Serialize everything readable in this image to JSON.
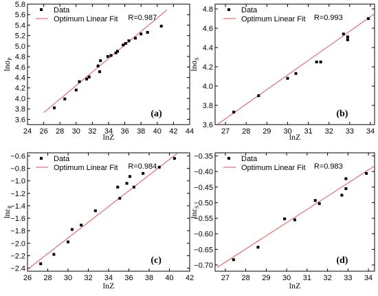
{
  "chart_data": [
    {
      "type": "scatter",
      "panel_label": "(a)",
      "xlabel": "lnZ",
      "ylabel_main": "lnσ",
      "ylabel_sub": "P",
      "xlim": [
        24,
        44
      ],
      "ylim": [
        3.5,
        5.8
      ],
      "xticks": [
        24,
        26,
        28,
        30,
        32,
        34,
        36,
        38,
        40,
        42,
        44
      ],
      "yticks": [
        3.6,
        3.8,
        4.0,
        4.2,
        4.4,
        4.6,
        4.8,
        5.0,
        5.2,
        5.4,
        5.6,
        5.8
      ],
      "ytick_decimals": 1,
      "r_text": "R=0.987",
      "legend": {
        "data": "Data",
        "fit": "Optimum Linear Fit",
        "placement": "top-left"
      },
      "fit": {
        "x": [
          26,
          41.2
        ],
        "y": [
          3.73,
          5.69
        ]
      },
      "points": [
        {
          "x": 27.3,
          "y": 3.82
        },
        {
          "x": 28.6,
          "y": 3.99
        },
        {
          "x": 30.0,
          "y": 4.16
        },
        {
          "x": 30.4,
          "y": 4.32
        },
        {
          "x": 31.3,
          "y": 4.37
        },
        {
          "x": 31.6,
          "y": 4.41
        },
        {
          "x": 32.7,
          "y": 4.62
        },
        {
          "x": 32.9,
          "y": 4.51
        },
        {
          "x": 33.0,
          "y": 4.72
        },
        {
          "x": 33.9,
          "y": 4.8
        },
        {
          "x": 34.3,
          "y": 4.82
        },
        {
          "x": 34.9,
          "y": 4.87
        },
        {
          "x": 35.1,
          "y": 4.9
        },
        {
          "x": 35.8,
          "y": 5.02
        },
        {
          "x": 36.1,
          "y": 5.05
        },
        {
          "x": 36.5,
          "y": 5.1
        },
        {
          "x": 37.3,
          "y": 5.15
        },
        {
          "x": 38.0,
          "y": 5.23
        },
        {
          "x": 38.8,
          "y": 5.26
        },
        {
          "x": 40.5,
          "y": 5.38
        }
      ]
    },
    {
      "type": "scatter",
      "panel_label": "(b)",
      "xlabel": "lnZ",
      "ylabel_main": "lnσ",
      "ylabel_sub": "S",
      "xlim": [
        26.5,
        34.2
      ],
      "ylim": [
        3.6,
        4.85
      ],
      "xticks": [
        27,
        28,
        29,
        30,
        31,
        32,
        33,
        34
      ],
      "yticks": [
        3.6,
        3.8,
        4.0,
        4.2,
        4.4,
        4.6,
        4.8
      ],
      "ytick_decimals": 1,
      "r_text": "R=0.993",
      "legend": {
        "data": "Data",
        "fit": "Optimum Linear Fit",
        "placement": "top-left"
      },
      "fit": {
        "x": [
          26.6,
          34.2
        ],
        "y": [
          3.6,
          4.75
        ]
      },
      "points": [
        {
          "x": 27.4,
          "y": 3.73
        },
        {
          "x": 28.6,
          "y": 3.9
        },
        {
          "x": 30.0,
          "y": 4.08
        },
        {
          "x": 30.4,
          "y": 4.13
        },
        {
          "x": 31.4,
          "y": 4.25
        },
        {
          "x": 31.6,
          "y": 4.25
        },
        {
          "x": 32.7,
          "y": 4.54
        },
        {
          "x": 32.9,
          "y": 4.48
        },
        {
          "x": 32.9,
          "y": 4.51
        },
        {
          "x": 33.9,
          "y": 4.7
        }
      ]
    },
    {
      "type": "scatter",
      "panel_label": "(c)",
      "xlabel": "lnZ",
      "ylabel_main": "lnε",
      "ylabel_sub": "P",
      "xlim": [
        26,
        42
      ],
      "ylim": [
        -2.45,
        -0.55
      ],
      "xticks": [
        26,
        28,
        30,
        32,
        34,
        36,
        38,
        40,
        42
      ],
      "yticks": [
        -2.4,
        -2.2,
        -2.0,
        -1.8,
        -1.6,
        -1.4,
        -1.2,
        -1.0,
        -0.8,
        -0.6
      ],
      "ytick_decimals": 1,
      "r_text": "R=0.984",
      "legend": {
        "data": "Data",
        "fit": "Optimum Linear Fit",
        "placement": "top-left"
      },
      "fit": {
        "x": [
          26,
          41
        ],
        "y": [
          -2.42,
          -0.53
        ]
      },
      "points": [
        {
          "x": 27.3,
          "y": -2.33
        },
        {
          "x": 28.6,
          "y": -2.18
        },
        {
          "x": 30.0,
          "y": -1.98
        },
        {
          "x": 30.4,
          "y": -1.78
        },
        {
          "x": 31.3,
          "y": -1.71
        },
        {
          "x": 32.7,
          "y": -1.48
        },
        {
          "x": 34.9,
          "y": -1.1
        },
        {
          "x": 35.1,
          "y": -1.28
        },
        {
          "x": 35.8,
          "y": -1.04
        },
        {
          "x": 36.1,
          "y": -0.93
        },
        {
          "x": 36.5,
          "y": -1.1
        },
        {
          "x": 37.4,
          "y": -0.88
        },
        {
          "x": 39.0,
          "y": -0.78
        },
        {
          "x": 40.5,
          "y": -0.64
        }
      ]
    },
    {
      "type": "scatter",
      "panel_label": "(d)",
      "xlabel": "lnZ",
      "ylabel_main": "lnε",
      "ylabel_sub": "S",
      "xlim": [
        26.5,
        34.3
      ],
      "ylim": [
        -0.72,
        -0.34
      ],
      "xticks": [
        27,
        28,
        29,
        30,
        31,
        32,
        33,
        34
      ],
      "yticks": [
        -0.7,
        -0.65,
        -0.6,
        -0.55,
        -0.5,
        -0.45,
        -0.4,
        -0.35
      ],
      "ytick_decimals": 2,
      "r_text": "R=0.983",
      "legend": {
        "data": "Data",
        "fit": "Optimum Linear Fit",
        "placement": "top-left"
      },
      "fit": {
        "x": [
          26.6,
          34.3
        ],
        "y": [
          -0.708,
          -0.382
        ]
      },
      "points": [
        {
          "x": 27.4,
          "y": -0.683
        },
        {
          "x": 28.6,
          "y": -0.643
        },
        {
          "x": 29.9,
          "y": -0.552
        },
        {
          "x": 30.4,
          "y": -0.555
        },
        {
          "x": 31.4,
          "y": -0.493
        },
        {
          "x": 31.6,
          "y": -0.503
        },
        {
          "x": 32.7,
          "y": -0.476
        },
        {
          "x": 32.9,
          "y": -0.455
        },
        {
          "x": 32.9,
          "y": -0.423
        },
        {
          "x": 33.9,
          "y": -0.406
        }
      ]
    }
  ]
}
